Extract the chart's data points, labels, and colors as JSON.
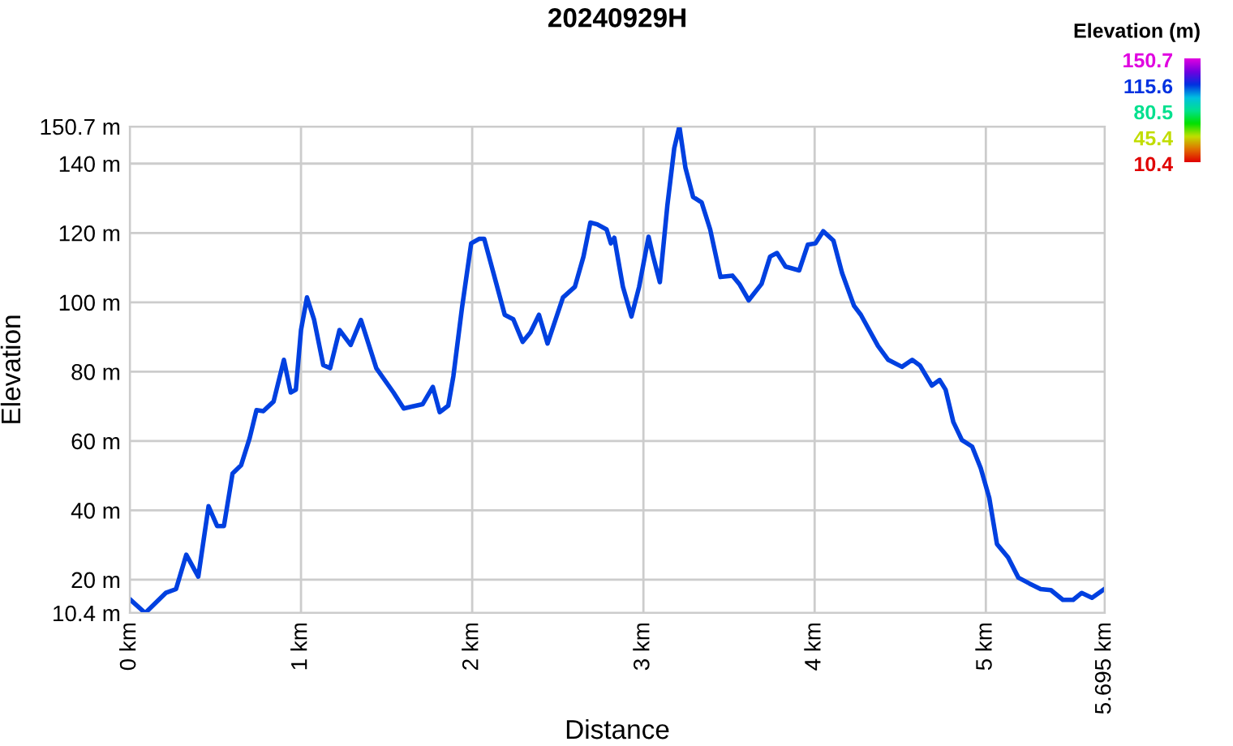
{
  "chart_data": {
    "type": "line",
    "title": "20240929H",
    "xlabel": "Distance",
    "ylabel": "Elevation",
    "clabel": "Elevation (m)",
    "clim": [
      10.4,
      150.7
    ],
    "cticks": [
      10.4,
      45.4,
      80.5,
      115.6,
      150.7
    ],
    "x": [
      0,
      0.09,
      0.21,
      0.27,
      0.33,
      0.4,
      0.46,
      0.51,
      0.55,
      0.6,
      0.65,
      0.7,
      0.74,
      0.78,
      0.84,
      0.9,
      0.94,
      0.97,
      1.0,
      1.035,
      1.076,
      1.13,
      1.17,
      1.225,
      1.29,
      1.35,
      1.44,
      1.54,
      1.6,
      1.71,
      1.77,
      1.81,
      1.86,
      1.89,
      1.94,
      1.994,
      2.04,
      2.07,
      2.12,
      2.19,
      2.24,
      2.295,
      2.34,
      2.39,
      2.44,
      2.53,
      2.6,
      2.65,
      2.69,
      2.73,
      2.785,
      2.81,
      2.83,
      2.88,
      2.93,
      2.975,
      3.03,
      3.055,
      3.096,
      3.14,
      3.18,
      3.21,
      3.245,
      3.29,
      3.34,
      3.39,
      3.45,
      3.52,
      3.56,
      3.615,
      3.69,
      3.74,
      3.78,
      3.83,
      3.91,
      3.96,
      4.005,
      4.05,
      4.11,
      4.16,
      4.23,
      4.27,
      4.37,
      4.43,
      4.51,
      4.57,
      4.615,
      4.685,
      4.73,
      4.765,
      4.81,
      4.86,
      4.92,
      4.97,
      5.02,
      5.065,
      5.13,
      5.19,
      5.255,
      5.32,
      5.38,
      5.45,
      5.51,
      5.56,
      5.62,
      5.695
    ],
    "series": [
      {
        "color": "#0040e0",
        "values": [
          14.4,
          10.4,
          16.2,
          17.3,
          27.2,
          20.9,
          41.2,
          35.5,
          35.5,
          50.6,
          53,
          60.8,
          68.9,
          68.6,
          71.4,
          83.4,
          74,
          74.8,
          92,
          101.4,
          95.1,
          81.9,
          81,
          92,
          87.7,
          94.9,
          81,
          74,
          69.4,
          70.6,
          75.6,
          68.3,
          70.2,
          78.7,
          98.3,
          117,
          118.3,
          118.3,
          109.2,
          96.4,
          95.1,
          88.6,
          91.3,
          96.4,
          88.1,
          101.4,
          104.5,
          113.2,
          123,
          122.5,
          121,
          117,
          118.6,
          104.5,
          95.9,
          104.5,
          118.9,
          113.6,
          105.8,
          128,
          144.4,
          150.7,
          138.9,
          130.4,
          128.8,
          121,
          107.3,
          107.7,
          105.3,
          100.6,
          105.3,
          113.2,
          114.2,
          110.3,
          109.2,
          116.6,
          117,
          120.5,
          117.8,
          108.5,
          99,
          96.4,
          87.4,
          83.4,
          81.4,
          83.4,
          81.8,
          76,
          77.6,
          74.8,
          65.5,
          60.3,
          58.4,
          52.2,
          43.6,
          30.3,
          26.4,
          20.6,
          18.9,
          17.3,
          17,
          14.2,
          14.2,
          16.2,
          14.8,
          17.4
        ]
      }
    ],
    "xlim": [
      0,
      5.695
    ],
    "xticks": [
      {
        "value": 0,
        "label": "0 km"
      },
      {
        "value": 1,
        "label": "1 km"
      },
      {
        "value": 2,
        "label": "2 km"
      },
      {
        "value": 3,
        "label": "3 km"
      },
      {
        "value": 4,
        "label": "4 km"
      },
      {
        "value": 5,
        "label": "5 km"
      },
      {
        "value": 5.695,
        "label": "5.695 km"
      }
    ],
    "ylim": [
      10.4,
      150.7
    ],
    "yticks": [
      {
        "value": 10.4,
        "label": "10.4 m"
      },
      {
        "value": 20,
        "label": "20 m"
      },
      {
        "value": 40,
        "label": "40 m"
      },
      {
        "value": 60,
        "label": "60 m"
      },
      {
        "value": 80,
        "label": "80 m"
      },
      {
        "value": 100,
        "label": "100 m"
      },
      {
        "value": 120,
        "label": "120 m"
      },
      {
        "value": 140,
        "label": "140 m"
      },
      {
        "value": 150.7,
        "label": "150.7 m"
      }
    ],
    "grid": true,
    "marker": "none",
    "line_style": "solid"
  }
}
